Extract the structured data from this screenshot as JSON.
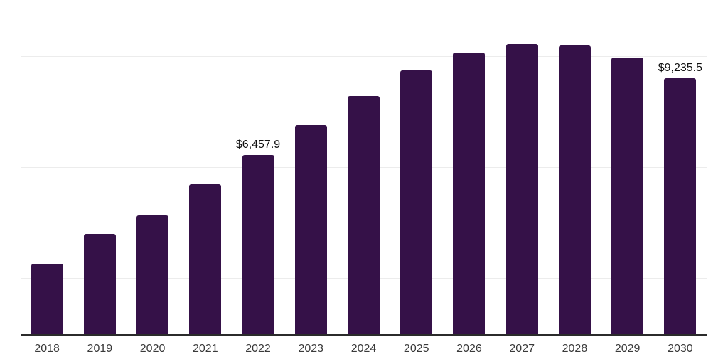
{
  "chart_data": {
    "type": "bar",
    "title": "",
    "xlabel": "",
    "ylabel": "",
    "categories": [
      "2018",
      "2019",
      "2020",
      "2021",
      "2022",
      "2023",
      "2024",
      "2025",
      "2026",
      "2027",
      "2028",
      "2029",
      "2030"
    ],
    "values": [
      2550,
      3610,
      4290,
      5400,
      6457.9,
      7550,
      8600,
      9510,
      10150,
      10470,
      10400,
      9970,
      9235.5
    ],
    "point_labels": {
      "2022": "$6,457.9",
      "2030": "$9,235.5"
    },
    "ylim": [
      0,
      12000
    ],
    "gridline_step": 2000,
    "grid": "horizontal-only",
    "legend": "none",
    "currency_format": "USD with thousands comma, one decimal"
  },
  "colors": {
    "background": "#ffffff",
    "bar": "#351148",
    "gridline": "#ececec",
    "axis_line": "#2b2b2b",
    "tick_label": "#3a3a3a",
    "data_label": "#111111"
  }
}
